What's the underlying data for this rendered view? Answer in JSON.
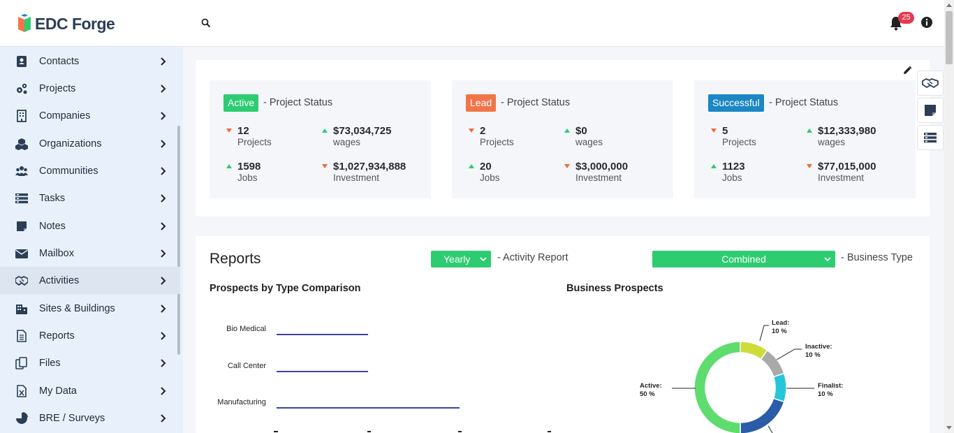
{
  "app": {
    "brand": "EDC Forge",
    "notifications_count": "25"
  },
  "sidebar": {
    "items": [
      {
        "label": "Contacts",
        "icon": "contact-book-icon"
      },
      {
        "label": "Projects",
        "icon": "gears-icon"
      },
      {
        "label": "Companies",
        "icon": "building-icon"
      },
      {
        "label": "Organizations",
        "icon": "cubes-icon"
      },
      {
        "label": "Communities",
        "icon": "people-group-icon"
      },
      {
        "label": "Tasks",
        "icon": "task-list-icon"
      },
      {
        "label": "Notes",
        "icon": "sticky-note-icon"
      },
      {
        "label": "Mailbox",
        "icon": "envelope-icon"
      },
      {
        "label": "Activities",
        "icon": "handshake-icon"
      },
      {
        "label": "Sites & Buildings",
        "icon": "city-buildings-icon"
      },
      {
        "label": "Reports",
        "icon": "document-icon"
      },
      {
        "label": "Files",
        "icon": "files-copy-icon"
      },
      {
        "label": "My Data",
        "icon": "excel-file-icon"
      },
      {
        "label": "BRE / Surveys",
        "icon": "pie-chart-icon"
      }
    ]
  },
  "status": {
    "panels": [
      {
        "pill": "Active",
        "pill_color": "#2ecc71",
        "title": "- Project Status",
        "metrics": [
          {
            "value": "12",
            "label": "Projects",
            "trend": "down"
          },
          {
            "value": "$73,034,725",
            "label": "wages",
            "trend": "up"
          },
          {
            "value": "1598",
            "label": "Jobs",
            "trend": "up"
          },
          {
            "value": "$1,027,934,888",
            "label": "Investment",
            "trend": "down"
          }
        ]
      },
      {
        "pill": "Lead",
        "pill_color": "#f2754a",
        "title": "- Project Status",
        "metrics": [
          {
            "value": "2",
            "label": "Projects",
            "trend": "down"
          },
          {
            "value": "$0",
            "label": "wages",
            "trend": "up"
          },
          {
            "value": "20",
            "label": "Jobs",
            "trend": "up"
          },
          {
            "value": "$3,000,000",
            "label": "Investment",
            "trend": "down"
          }
        ]
      },
      {
        "pill": "Successful",
        "pill_color": "#1b87c4",
        "title": "- Project Status",
        "metrics": [
          {
            "value": "5",
            "label": "Projects",
            "trend": "down"
          },
          {
            "value": "$12,333,980",
            "label": "wages",
            "trend": "up"
          },
          {
            "value": "1123",
            "label": "Jobs",
            "trend": "up"
          },
          {
            "value": "$77,015,000",
            "label": "Investment",
            "trend": "down"
          }
        ]
      }
    ]
  },
  "reports": {
    "title": "Reports",
    "period_select": "Yearly",
    "period_label": "- Activity Report",
    "business_select": "Combined",
    "business_label": "- Business Type",
    "bar_chart_title": "Prospects by Type Comparison",
    "donut_title": "Business Prospects"
  },
  "chart_data": [
    {
      "type": "bar",
      "title": "Prospects by Type Comparison",
      "categories": [
        "Bio Medical",
        "Call Center",
        "Manufacturing"
      ],
      "values": [
        2,
        2,
        4
      ]
    },
    {
      "type": "pie",
      "title": "Business Prospects",
      "slices": [
        {
          "label": "Lead:",
          "pct": "10 %",
          "value": 10,
          "color": "#cddc39"
        },
        {
          "label": "Inactive:",
          "pct": "10 %",
          "value": 10,
          "color": "#a9a9a9"
        },
        {
          "label": "Finalist:",
          "pct": "10 %",
          "value": 10,
          "color": "#26c6da"
        },
        {
          "label": "",
          "pct": "",
          "value": 20,
          "color": "#2a5ca8"
        },
        {
          "label": "Active:",
          "pct": "50 %",
          "value": 50,
          "color": "#5fdc6e"
        }
      ]
    }
  ]
}
